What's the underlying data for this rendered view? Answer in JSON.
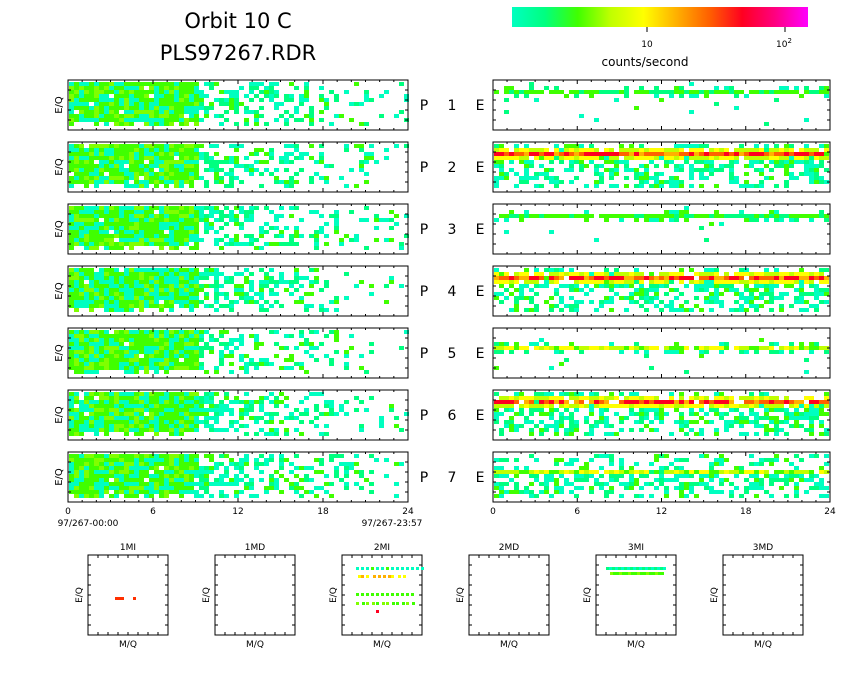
{
  "header": {
    "title_line1": "Orbit 10 C",
    "title_line2": "PLS97267.RDR"
  },
  "colorbar": {
    "colors": [
      "#00ffc0",
      "#00ff80",
      "#40ff00",
      "#c0ff00",
      "#ffff00",
      "#ffb000",
      "#ff6000",
      "#ff0020",
      "#ff0080",
      "#ff00ff"
    ],
    "tick_10": "10",
    "tick_100": "10",
    "tick_100_exp": "2",
    "label": "counts/second"
  },
  "chart_data": {
    "type": "heatmap",
    "row_prefix": "P",
    "row_suffix": "E",
    "rows": [
      "1",
      "2",
      "3",
      "4",
      "5",
      "6",
      "7"
    ],
    "ylabel": "E/Q",
    "x_ticks": [
      "0",
      "6",
      "12",
      "18",
      "24"
    ],
    "xlim": [
      0,
      24
    ],
    "x_start_label": "97/267-00:00",
    "x_end_label": "97/267-23:57",
    "left_panels": [
      {
        "row": "1",
        "density": 0.75,
        "hot_band": null
      },
      {
        "row": "2",
        "density": 0.8,
        "hot_band": null
      },
      {
        "row": "3",
        "density": 0.75,
        "hot_band": null
      },
      {
        "row": "4",
        "density": 0.78,
        "hot_band": null
      },
      {
        "row": "5",
        "density": 0.65,
        "hot_band": null
      },
      {
        "row": "6",
        "density": 0.8,
        "hot_band": null
      },
      {
        "row": "7",
        "density": 0.82,
        "hot_band": null
      }
    ],
    "right_panels": [
      {
        "row": "1",
        "density": 0.2,
        "hot_band": "weak-upper"
      },
      {
        "row": "2",
        "density": 0.7,
        "hot_band": "strong-upper"
      },
      {
        "row": "3",
        "density": 0.12,
        "hot_band": "weak-upper"
      },
      {
        "row": "4",
        "density": 0.7,
        "hot_band": "strong-upper"
      },
      {
        "row": "5",
        "density": 0.25,
        "hot_band": "medium-middle"
      },
      {
        "row": "6",
        "density": 0.7,
        "hot_band": "strong-upper"
      },
      {
        "row": "7",
        "density": 0.72,
        "hot_band": "medium-middle"
      }
    ],
    "mass_panels": [
      {
        "title": "1MI",
        "xlabel": "M/Q",
        "ylabel": "E/Q",
        "content": "few-points"
      },
      {
        "title": "1MD",
        "xlabel": "M/Q",
        "ylabel": "E/Q",
        "content": "empty"
      },
      {
        "title": "2MI",
        "xlabel": "M/Q",
        "ylabel": "E/Q",
        "content": "scattered"
      },
      {
        "title": "2MD",
        "xlabel": "M/Q",
        "ylabel": "E/Q",
        "content": "empty"
      },
      {
        "title": "3MI",
        "xlabel": "M/Q",
        "ylabel": "E/Q",
        "content": "top-row"
      },
      {
        "title": "3MD",
        "xlabel": "M/Q",
        "ylabel": "E/Q",
        "content": "empty"
      }
    ]
  }
}
